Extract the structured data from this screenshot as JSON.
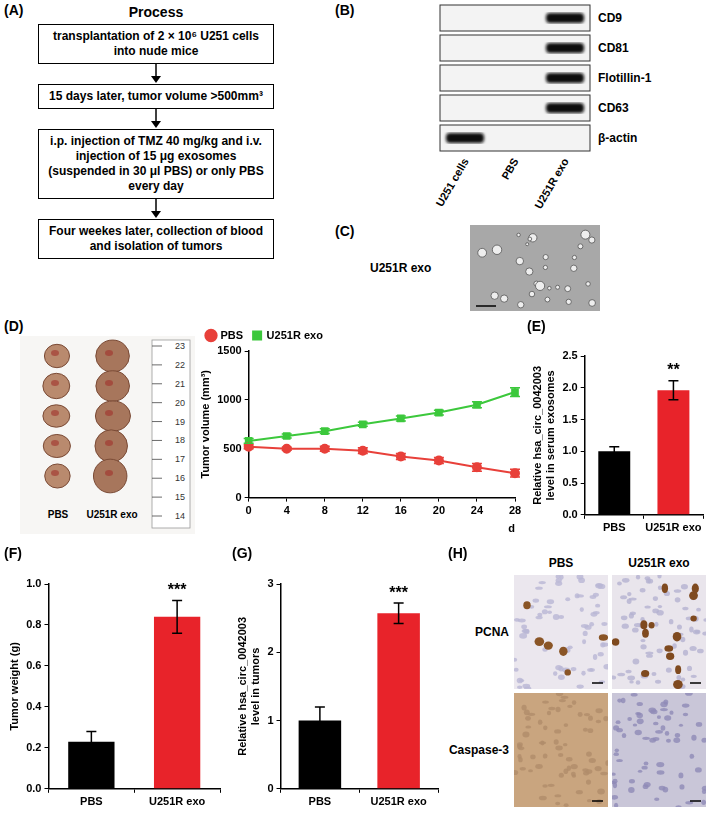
{
  "flowchart": {
    "panel_label": "(A)",
    "title": "Process",
    "steps": [
      "transplantation of 2 × 10⁶ U251 cells into nude mice",
      "15 days later, tumor volume >500mm³",
      "i.p. injection of TMZ 40 mg/kg and i.v. injection of 15 μg exosomes (suspended in 30 μl PBS) or only PBS every day",
      "Four weekes later, collection of blood and isolation of tumors"
    ]
  },
  "western_blot": {
    "panel_label": "(B)",
    "lanes": [
      "U251 cells",
      "PBS",
      "U251R exo"
    ],
    "rows": [
      {
        "name": "CD9",
        "bands": [
          "U251R exo"
        ]
      },
      {
        "name": "CD81",
        "bands": [
          "U251R exo"
        ]
      },
      {
        "name": "Flotillin-1",
        "bands": [
          "U251R exo"
        ]
      },
      {
        "name": "CD63",
        "bands": [
          "U251R exo"
        ]
      },
      {
        "name": "β-actin",
        "bands": [
          "U251 cells"
        ]
      }
    ]
  },
  "tem": {
    "panel_label": "(C)",
    "caption": "U251R exo"
  },
  "tumor_photo": {
    "panel_label": "(D)",
    "groups": [
      "PBS",
      "U251R exo"
    ],
    "tumors_per_group": 5,
    "ruler_marks": [
      14,
      15,
      16,
      17,
      18,
      19,
      20,
      21,
      22,
      23
    ]
  },
  "chart_data": [
    {
      "type": "line",
      "x": [
        0,
        4,
        8,
        12,
        16,
        20,
        24,
        28
      ],
      "x_label": "d",
      "y_label": "Tumor volume (mm³)",
      "xlim": [
        0,
        28
      ],
      "xticks": [
        0,
        4,
        8,
        12,
        16,
        20,
        24,
        28
      ],
      "ylim": [
        0,
        1500
      ],
      "yticks": [
        0,
        500,
        1000,
        1500
      ],
      "grid": false,
      "legend": "top-left",
      "series": [
        {
          "name": "PBS",
          "color": "#e8403a",
          "marker": "circle",
          "values": [
            520,
            500,
            500,
            480,
            420,
            380,
            310,
            250
          ],
          "errors": [
            20,
            15,
            25,
            30,
            30,
            30,
            40,
            40
          ]
        },
        {
          "name": "U251R exo",
          "color": "#3cc83c",
          "marker": "square",
          "values": [
            580,
            630,
            680,
            750,
            810,
            870,
            950,
            1080
          ],
          "errors": [
            25,
            20,
            25,
            20,
            25,
            25,
            30,
            45
          ]
        }
      ]
    },
    {
      "type": "bar",
      "panel_label": "(E)",
      "categories": [
        "PBS",
        "U251R exo"
      ],
      "values": [
        1.0,
        1.96
      ],
      "errors": [
        0.07,
        0.15
      ],
      "colors": [
        "#000000",
        "#e8232a"
      ],
      "y_label": "Relative hsa_circ_0042003 level in serum exosomes",
      "ylim": [
        0,
        2.5
      ],
      "yticks": [
        {
          "value": 0,
          "label": "0.0"
        },
        0.5,
        {
          "value": 1,
          "label": "1.0"
        },
        1.5,
        {
          "value": 2,
          "label": "2.0"
        },
        2.5
      ],
      "grid": false,
      "annotations": [
        {
          "category": "U251R exo",
          "text": "**"
        }
      ]
    },
    {
      "type": "bar",
      "panel_label": "(F)",
      "categories": [
        "PBS",
        "U251R exo"
      ],
      "values": [
        0.23,
        0.84
      ],
      "errors": [
        0.05,
        0.08
      ],
      "colors": [
        "#000000",
        "#e8232a"
      ],
      "y_label": "Tumor weight (g)",
      "ylim": [
        0,
        1.0
      ],
      "yticks": [
        {
          "value": 0,
          "label": "0.0"
        },
        0.2,
        0.4,
        0.6,
        0.8,
        {
          "value": 1,
          "label": "1.0"
        }
      ],
      "grid": false,
      "annotations": [
        {
          "category": "U251R exo",
          "text": "***"
        }
      ]
    },
    {
      "type": "bar",
      "panel_label": "(G)",
      "categories": [
        "PBS",
        "U251R exo"
      ],
      "values": [
        1.0,
        2.57
      ],
      "errors": [
        0.2,
        0.15
      ],
      "colors": [
        "#000000",
        "#e8232a"
      ],
      "y_label": "Relative hsa_circ_0042003 level in tumors",
      "ylim": [
        0,
        3
      ],
      "yticks": [
        0,
        1,
        2,
        3
      ],
      "grid": false,
      "annotations": [
        {
          "category": "U251R exo",
          "text": "***"
        }
      ]
    }
  ],
  "ihc": {
    "panel_label": "(H)",
    "columns": [
      "PBS",
      "U251R exo"
    ],
    "rows": [
      "PCNA",
      "Caspase-3"
    ]
  }
}
